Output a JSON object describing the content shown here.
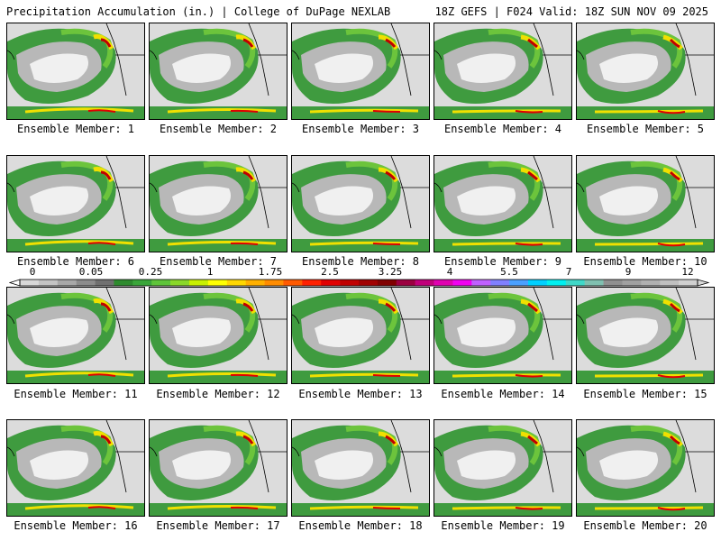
{
  "header": {
    "left_title": "Precipitation Accumulation (in.) | College of DuPage NEXLAB",
    "right_title": "18Z GEFS | F024 Valid: 18Z SUN NOV 09 2025"
  },
  "colorbar": {
    "tick_labels": [
      "0",
      "0.05",
      "0.25",
      "1",
      "1.75",
      "2.5",
      "3.25",
      "4",
      "5.5",
      "7",
      "9",
      "12"
    ],
    "colors": [
      "#d8d8d8",
      "#c4c4c4",
      "#a8a8a8",
      "#8c8c8c",
      "#707070",
      "#2e8b2e",
      "#3aa63a",
      "#5ec43a",
      "#8ad82a",
      "#c8f000",
      "#ffff00",
      "#ffd700",
      "#ffb000",
      "#ff8c00",
      "#ff5a00",
      "#ff2000",
      "#e00000",
      "#c00000",
      "#a00000",
      "#800000",
      "#9b0040",
      "#c0007a",
      "#e000b0",
      "#f000f0",
      "#c060ff",
      "#8080ff",
      "#4aa0ff",
      "#00d0ff",
      "#00f0f0",
      "#40d8c8",
      "#80c0b0",
      "#909090",
      "#a0a0a0",
      "#b0b0b0",
      "#c0c0c0",
      "#d0d0d0"
    ]
  },
  "panels": [
    {
      "label": "Ensemble Member: 1"
    },
    {
      "label": "Ensemble Member: 2"
    },
    {
      "label": "Ensemble Member: 3"
    },
    {
      "label": "Ensemble Member: 4"
    },
    {
      "label": "Ensemble Member: 5"
    },
    {
      "label": "Ensemble Member: 6"
    },
    {
      "label": "Ensemble Member: 7"
    },
    {
      "label": "Ensemble Member: 8"
    },
    {
      "label": "Ensemble Member: 9"
    },
    {
      "label": "Ensemble Member: 10"
    },
    {
      "label": "Ensemble Member: 11"
    },
    {
      "label": "Ensemble Member: 12"
    },
    {
      "label": "Ensemble Member: 13"
    },
    {
      "label": "Ensemble Member: 14"
    },
    {
      "label": "Ensemble Member: 15"
    },
    {
      "label": "Ensemble Member: 16"
    },
    {
      "label": "Ensemble Member: 17"
    },
    {
      "label": "Ensemble Member: 18"
    },
    {
      "label": "Ensemble Member: 19"
    },
    {
      "label": "Ensemble Member: 20"
    }
  ]
}
